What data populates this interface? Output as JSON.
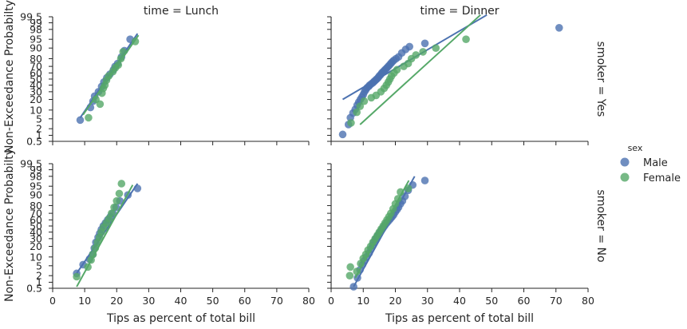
{
  "chart_data": {
    "type": "scatter",
    "xlabel": "Tips as percent of total bill",
    "ylabel": "Non-Exceedance Probabilty",
    "xlim": [
      0,
      80
    ],
    "x_ticks": [
      0,
      10,
      20,
      30,
      40,
      50,
      60,
      70,
      80
    ],
    "y_scale": "probability",
    "y_ticks": [
      0.5,
      1,
      2,
      5,
      10,
      20,
      30,
      40,
      50,
      60,
      70,
      80,
      90,
      95,
      98,
      99,
      99.5
    ],
    "col_titles": [
      "time = Lunch",
      "time = Dinner"
    ],
    "row_titles": [
      "smoker = Yes",
      "smoker = No"
    ],
    "legend": {
      "title": "sex",
      "entries": [
        {
          "label": "Male",
          "color": "#4c72b0"
        },
        {
          "label": "Female",
          "color": "#55a868"
        }
      ]
    },
    "panels": [
      {
        "row": 0,
        "col": 0,
        "series": [
          {
            "sex": "Male",
            "color": "#4c72b0",
            "points": [
              [
                8.6,
                4.5
              ],
              [
                11.8,
                12
              ],
              [
                12.6,
                18
              ],
              [
                13.1,
                24
              ],
              [
                14.3,
                30
              ],
              [
                15.3,
                38
              ],
              [
                16.0,
                45
              ],
              [
                16.9,
                52
              ],
              [
                17.9,
                58
              ],
              [
                19.0,
                65
              ],
              [
                19.5,
                70
              ],
              [
                20.3,
                74
              ],
              [
                21.5,
                82
              ],
              [
                22.4,
                88
              ],
              [
                24.2,
                95
              ]
            ],
            "fit": [
              [
                8.6,
                5.5
              ],
              [
                26.5,
                97
              ]
            ]
          },
          {
            "sex": "Female",
            "color": "#55a868",
            "points": [
              [
                11.2,
                5.5
              ],
              [
                13.5,
                20
              ],
              [
                14.8,
                15
              ],
              [
                15.4,
                28
              ],
              [
                15.8,
                35
              ],
              [
                16.3,
                40
              ],
              [
                16.8,
                48
              ],
              [
                17.5,
                55
              ],
              [
                18.8,
                62
              ],
              [
                19.6,
                68
              ],
              [
                20.5,
                72
              ],
              [
                21.3,
                80
              ],
              [
                22.0,
                87
              ],
              [
                25.8,
                94
              ]
            ],
            "fit": [
              [
                9.5,
                7
              ],
              [
                26.8,
                96.5
              ]
            ]
          }
        ]
      },
      {
        "row": 0,
        "col": 1,
        "series": [
          {
            "sex": "Male",
            "color": "#4c72b0",
            "points": [
              [
                3.6,
                1.1
              ],
              [
                5.4,
                3
              ],
              [
                6.0,
                5.5
              ],
              [
                6.8,
                8
              ],
              [
                7.5,
                10.5
              ],
              [
                8.1,
                14
              ],
              [
                8.6,
                17
              ],
              [
                9.1,
                20
              ],
              [
                9.6,
                23
              ],
              [
                10.0,
                26
              ],
              [
                10.4,
                30
              ],
              [
                10.8,
                33
              ],
              [
                11.2,
                36
              ],
              [
                11.7,
                38
              ],
              [
                12.0,
                40
              ],
              [
                12.5,
                42
              ],
              [
                13.0,
                44
              ],
              [
                13.4,
                46
              ],
              [
                13.8,
                48
              ],
              [
                14.2,
                50
              ],
              [
                14.6,
                52
              ],
              [
                15.0,
                55
              ],
              [
                15.4,
                57
              ],
              [
                15.8,
                60
              ],
              [
                16.2,
                62
              ],
              [
                16.6,
                64
              ],
              [
                17.0,
                66
              ],
              [
                17.4,
                68
              ],
              [
                17.8,
                70
              ],
              [
                18.2,
                72
              ],
              [
                18.6,
                74
              ],
              [
                19.0,
                76
              ],
              [
                19.5,
                78
              ],
              [
                20.2,
                80
              ],
              [
                21.0,
                82
              ],
              [
                22.0,
                86
              ],
              [
                23.2,
                89
              ],
              [
                24.4,
                91
              ],
              [
                29.2,
                93
              ],
              [
                71.0,
                98.3
              ]
            ],
            "fit": [
              [
                3.6,
                20
              ],
              [
                48.5,
                99.6
              ]
            ]
          },
          {
            "sex": "Female",
            "color": "#55a868",
            "points": [
              [
                6.2,
                3.5
              ],
              [
                8.0,
                8.5
              ],
              [
                9.0,
                13
              ],
              [
                10.3,
                18
              ],
              [
                12.5,
                22
              ],
              [
                14.0,
                25
              ],
              [
                15.5,
                30
              ],
              [
                16.5,
                35
              ],
              [
                17.2,
                40
              ],
              [
                17.8,
                45
              ],
              [
                18.3,
                50
              ],
              [
                18.8,
                55
              ],
              [
                19.6,
                60
              ],
              [
                20.5,
                65
              ],
              [
                22.6,
                70
              ],
              [
                24.0,
                74
              ],
              [
                25.0,
                80
              ],
              [
                26.4,
                84
              ],
              [
                28.6,
                87
              ],
              [
                32.6,
                90
              ],
              [
                42.0,
                95
              ]
            ],
            "fit": [
              [
                9.0,
                3
              ],
              [
                46.5,
                99.6
              ]
            ]
          }
        ]
      },
      {
        "row": 1,
        "col": 0,
        "series": [
          {
            "sex": "Male",
            "color": "#4c72b0",
            "points": [
              [
                7.5,
                2.5
              ],
              [
                9.5,
                5.5
              ],
              [
                11.5,
                8.5
              ],
              [
                12.5,
                12
              ],
              [
                13.0,
                18
              ],
              [
                13.5,
                25
              ],
              [
                14.2,
                32
              ],
              [
                14.7,
                38
              ],
              [
                15.2,
                44
              ],
              [
                15.8,
                50
              ],
              [
                16.5,
                55
              ],
              [
                17.2,
                60
              ],
              [
                18.0,
                65
              ],
              [
                18.8,
                70
              ],
              [
                19.8,
                78
              ],
              [
                21.0,
                85
              ],
              [
                23.5,
                90
              ],
              [
                26.5,
                94
              ]
            ],
            "fit": [
              [
                7.5,
                2.5
              ],
              [
                26.5,
                96
              ]
            ]
          },
          {
            "sex": "Female",
            "color": "#55a868",
            "points": [
              [
                7.5,
                1.8
              ],
              [
                11.0,
                4.5
              ],
              [
                12.0,
                8
              ],
              [
                12.6,
                12
              ],
              [
                13.3,
                18
              ],
              [
                14.0,
                25
              ],
              [
                14.6,
                32
              ],
              [
                15.2,
                40
              ],
              [
                15.9,
                48
              ],
              [
                16.8,
                55
              ],
              [
                17.6,
                62
              ],
              [
                18.4,
                70
              ],
              [
                19.2,
                78
              ],
              [
                20.0,
                85
              ],
              [
                20.8,
                91
              ],
              [
                21.5,
                96
              ]
            ],
            "fit": [
              [
                7.5,
                0.6
              ],
              [
                25.0,
                95.5
              ]
            ]
          }
        ]
      },
      {
        "row": 1,
        "col": 1,
        "series": [
          {
            "sex": "Male",
            "color": "#4c72b0",
            "points": [
              [
                7.0,
                0.6
              ],
              [
                8.2,
                1.6
              ],
              [
                9.0,
                3.5
              ],
              [
                9.8,
                5.5
              ],
              [
                10.3,
                7.5
              ],
              [
                11.0,
                10
              ],
              [
                11.8,
                13
              ],
              [
                12.4,
                17
              ],
              [
                12.9,
                21
              ],
              [
                13.3,
                25
              ],
              [
                13.8,
                29
              ],
              [
                14.2,
                32
              ],
              [
                14.6,
                35
              ],
              [
                15.0,
                38
              ],
              [
                15.4,
                41
              ],
              [
                15.8,
                44
              ],
              [
                16.2,
                47
              ],
              [
                16.6,
                50
              ],
              [
                17.0,
                53
              ],
              [
                17.5,
                56
              ],
              [
                18.0,
                59
              ],
              [
                18.5,
                62
              ],
              [
                19.0,
                65
              ],
              [
                19.5,
                68
              ],
              [
                20.0,
                72
              ],
              [
                20.5,
                75
              ],
              [
                21.0,
                78
              ],
              [
                21.6,
                82
              ],
              [
                22.2,
                85
              ],
              [
                23.0,
                89
              ],
              [
                24.0,
                93
              ],
              [
                25.4,
                95.5
              ],
              [
                29.2,
                97
              ]
            ],
            "fit": [
              [
                7.0,
                0.6
              ],
              [
                26.0,
                98
              ]
            ]
          },
          {
            "sex": "Female",
            "color": "#55a868",
            "points": [
              [
                5.8,
                2
              ],
              [
                6.0,
                4.5
              ],
              [
                8.0,
                3
              ],
              [
                9.2,
                6
              ],
              [
                10.0,
                9
              ],
              [
                10.8,
                12
              ],
              [
                11.5,
                16
              ],
              [
                12.3,
                20
              ],
              [
                13.0,
                25
              ],
              [
                13.7,
                30
              ],
              [
                14.4,
                35
              ],
              [
                15.0,
                40
              ],
              [
                15.6,
                45
              ],
              [
                16.2,
                50
              ],
              [
                16.8,
                55
              ],
              [
                17.4,
                60
              ],
              [
                18.0,
                65
              ],
              [
                18.6,
                70
              ],
              [
                19.3,
                76
              ],
              [
                20.0,
                82
              ],
              [
                20.8,
                87
              ],
              [
                21.6,
                92
              ],
              [
                24.0,
                94
              ]
            ],
            "fit": [
              [
                7.5,
                1.6
              ],
              [
                24.2,
                97
              ]
            ]
          }
        ]
      }
    ]
  }
}
